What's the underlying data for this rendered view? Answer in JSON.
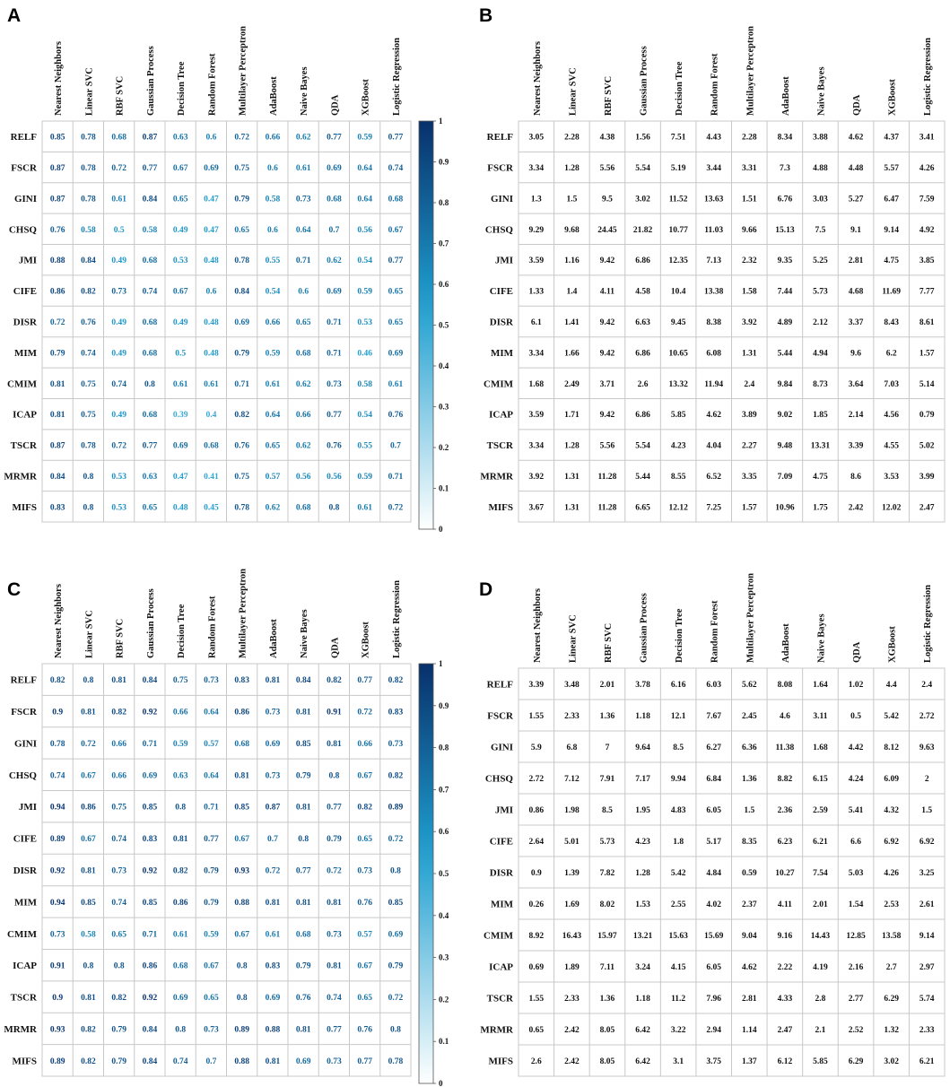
{
  "chart_data": [
    {
      "panel": "A",
      "type": "heatmap",
      "colored_values": true,
      "colorbar": {
        "min": 0,
        "max": 1,
        "ticks": [
          "0",
          "0.1",
          "0.2",
          "0.3",
          "0.4",
          "0.5",
          "0.6",
          "0.7",
          "0.8",
          "0.9",
          "1"
        ]
      },
      "columns": [
        "Nearest Neighbors",
        "Linear SVC",
        "RBF SVC",
        "Gaussian Process",
        "Decision Tree",
        "Random Forest",
        "Multilayer Perceptron",
        "AdaBoost",
        "Naive Bayes",
        "QDA",
        "XGBoost",
        "Logistic Regression"
      ],
      "rows": [
        "RELF",
        "FSCR",
        "GINI",
        "CHSQ",
        "JMI",
        "CIFE",
        "DISR",
        "MIM",
        "CMIM",
        "ICAP",
        "TSCR",
        "MRMR",
        "MIFS"
      ],
      "values": [
        [
          "0.85",
          "0.78",
          "0.68",
          "0.87",
          "0.63",
          "0.6",
          "0.72",
          "0.66",
          "0.62",
          "0.77",
          "0.59",
          "0.77"
        ],
        [
          "0.87",
          "0.78",
          "0.72",
          "0.77",
          "0.67",
          "0.69",
          "0.75",
          "0.6",
          "0.61",
          "0.69",
          "0.64",
          "0.74"
        ],
        [
          "0.87",
          "0.78",
          "0.61",
          "0.84",
          "0.65",
          "0.47",
          "0.79",
          "0.58",
          "0.73",
          "0.68",
          "0.64",
          "0.68"
        ],
        [
          "0.76",
          "0.58",
          "0.5",
          "0.58",
          "0.49",
          "0.47",
          "0.65",
          "0.6",
          "0.64",
          "0.7",
          "0.56",
          "0.67"
        ],
        [
          "0.88",
          "0.84",
          "0.49",
          "0.68",
          "0.53",
          "0.48",
          "0.78",
          "0.55",
          "0.71",
          "0.62",
          "0.54",
          "0.77"
        ],
        [
          "0.86",
          "0.82",
          "0.73",
          "0.74",
          "0.67",
          "0.6",
          "0.84",
          "0.54",
          "0.6",
          "0.69",
          "0.59",
          "0.65"
        ],
        [
          "0.72",
          "0.76",
          "0.49",
          "0.68",
          "0.49",
          "0.48",
          "0.69",
          "0.66",
          "0.65",
          "0.71",
          "0.53",
          "0.65"
        ],
        [
          "0.79",
          "0.74",
          "0.49",
          "0.68",
          "0.5",
          "0.48",
          "0.79",
          "0.59",
          "0.68",
          "0.71",
          "0.46",
          "0.69"
        ],
        [
          "0.81",
          "0.75",
          "0.74",
          "0.8",
          "0.61",
          "0.61",
          "0.71",
          "0.61",
          "0.62",
          "0.73",
          "0.58",
          "0.61"
        ],
        [
          "0.81",
          "0.75",
          "0.49",
          "0.68",
          "0.39",
          "0.4",
          "0.82",
          "0.64",
          "0.66",
          "0.77",
          "0.54",
          "0.76"
        ],
        [
          "0.87",
          "0.78",
          "0.72",
          "0.77",
          "0.69",
          "0.68",
          "0.76",
          "0.65",
          "0.62",
          "0.76",
          "0.55",
          "0.7"
        ],
        [
          "0.84",
          "0.8",
          "0.53",
          "0.63",
          "0.47",
          "0.41",
          "0.75",
          "0.57",
          "0.56",
          "0.56",
          "0.59",
          "0.71"
        ],
        [
          "0.83",
          "0.8",
          "0.53",
          "0.65",
          "0.48",
          "0.45",
          "0.78",
          "0.62",
          "0.68",
          "0.8",
          "0.61",
          "0.72"
        ]
      ]
    },
    {
      "panel": "B",
      "type": "table",
      "colored_values": false,
      "columns": [
        "Nearest Neighbors",
        "Linear SVC",
        "RBF SVC",
        "Gaussian Process",
        "Decision Tree",
        "Random Forest",
        "Multilayer Perceptron",
        "AdaBoost",
        "Naive Bayes",
        "QDA",
        "XGBoost",
        "Logistic Regression"
      ],
      "rows": [
        "RELF",
        "FSCR",
        "GINI",
        "CHSQ",
        "JMI",
        "CIFE",
        "DISR",
        "MIM",
        "CMIM",
        "ICAP",
        "TSCR",
        "MRMR",
        "MIFS"
      ],
      "values": [
        [
          "3.05",
          "2.28",
          "4.38",
          "1.56",
          "7.51",
          "4.43",
          "2.28",
          "8.34",
          "3.88",
          "4.62",
          "4.37",
          "3.41"
        ],
        [
          "3.34",
          "1.28",
          "5.56",
          "5.54",
          "5.19",
          "3.44",
          "3.31",
          "7.3",
          "4.88",
          "4.48",
          "5.57",
          "4.26"
        ],
        [
          "1.3",
          "1.5",
          "9.5",
          "3.02",
          "11.52",
          "13.63",
          "1.51",
          "6.76",
          "3.03",
          "5.27",
          "6.47",
          "7.59"
        ],
        [
          "9.29",
          "9.68",
          "24.45",
          "21.82",
          "10.77",
          "11.03",
          "9.66",
          "15.13",
          "7.5",
          "9.1",
          "9.14",
          "4.92"
        ],
        [
          "3.59",
          "1.16",
          "9.42",
          "6.86",
          "12.35",
          "7.13",
          "2.32",
          "9.35",
          "5.25",
          "2.81",
          "4.75",
          "3.85"
        ],
        [
          "1.33",
          "1.4",
          "4.11",
          "4.58",
          "10.4",
          "13.38",
          "1.58",
          "7.44",
          "5.73",
          "4.68",
          "11.69",
          "7.77"
        ],
        [
          "6.1",
          "1.41",
          "9.42",
          "6.63",
          "9.45",
          "8.38",
          "3.92",
          "4.89",
          "2.12",
          "3.37",
          "8.43",
          "8.61"
        ],
        [
          "3.34",
          "1.66",
          "9.42",
          "6.86",
          "10.65",
          "6.08",
          "1.31",
          "5.44",
          "4.94",
          "9.6",
          "6.2",
          "1.57"
        ],
        [
          "1.68",
          "2.49",
          "3.71",
          "2.6",
          "13.32",
          "11.94",
          "2.4",
          "9.84",
          "8.73",
          "3.64",
          "7.03",
          "5.14"
        ],
        [
          "3.59",
          "1.71",
          "9.42",
          "6.86",
          "5.85",
          "4.62",
          "3.89",
          "9.02",
          "1.85",
          "2.14",
          "4.56",
          "0.79"
        ],
        [
          "3.34",
          "1.28",
          "5.56",
          "5.54",
          "4.23",
          "4.04",
          "2.27",
          "9.48",
          "13.31",
          "3.39",
          "4.55",
          "5.02"
        ],
        [
          "3.92",
          "1.31",
          "11.28",
          "5.44",
          "8.55",
          "6.52",
          "3.35",
          "7.09",
          "4.75",
          "8.6",
          "3.53",
          "3.99"
        ],
        [
          "3.67",
          "1.31",
          "11.28",
          "6.65",
          "12.12",
          "7.25",
          "1.57",
          "10.96",
          "1.75",
          "2.42",
          "12.02",
          "2.47"
        ]
      ]
    },
    {
      "panel": "C",
      "type": "heatmap",
      "colored_values": true,
      "colorbar": {
        "min": 0,
        "max": 1,
        "ticks": [
          "0",
          "0.1",
          "0.2",
          "0.3",
          "0.4",
          "0.5",
          "0.6",
          "0.7",
          "0.8",
          "0.9",
          "1"
        ]
      },
      "columns": [
        "Nearest Neighbors",
        "Linear SVC",
        "RBF SVC",
        "Gaussian Process",
        "Decision Tree",
        "Random Forest",
        "Multilayer Perceptron",
        "AdaBoost",
        "Naive Bayes",
        "QDA",
        "XGBoost",
        "Logistic Regression"
      ],
      "rows": [
        "RELF",
        "FSCR",
        "GINI",
        "CHSQ",
        "JMI",
        "CIFE",
        "DISR",
        "MIM",
        "CMIM",
        "ICAP",
        "TSCR",
        "MRMR",
        "MIFS"
      ],
      "values": [
        [
          "0.82",
          "0.8",
          "0.81",
          "0.84",
          "0.75",
          "0.73",
          "0.83",
          "0.81",
          "0.84",
          "0.82",
          "0.77",
          "0.82"
        ],
        [
          "0.9",
          "0.81",
          "0.82",
          "0.92",
          "0.66",
          "0.64",
          "0.86",
          "0.73",
          "0.81",
          "0.91",
          "0.72",
          "0.83"
        ],
        [
          "0.78",
          "0.72",
          "0.66",
          "0.71",
          "0.59",
          "0.57",
          "0.68",
          "0.69",
          "0.85",
          "0.81",
          "0.66",
          "0.73"
        ],
        [
          "0.74",
          "0.67",
          "0.66",
          "0.69",
          "0.63",
          "0.64",
          "0.81",
          "0.73",
          "0.79",
          "0.8",
          "0.67",
          "0.82"
        ],
        [
          "0.94",
          "0.86",
          "0.75",
          "0.85",
          "0.8",
          "0.71",
          "0.85",
          "0.87",
          "0.81",
          "0.77",
          "0.82",
          "0.89"
        ],
        [
          "0.89",
          "0.67",
          "0.74",
          "0.83",
          "0.81",
          "0.77",
          "0.67",
          "0.7",
          "0.8",
          "0.79",
          "0.65",
          "0.72"
        ],
        [
          "0.92",
          "0.81",
          "0.73",
          "0.92",
          "0.82",
          "0.79",
          "0.93",
          "0.72",
          "0.77",
          "0.72",
          "0.73",
          "0.8"
        ],
        [
          "0.94",
          "0.85",
          "0.74",
          "0.85",
          "0.86",
          "0.79",
          "0.88",
          "0.81",
          "0.81",
          "0.81",
          "0.76",
          "0.85"
        ],
        [
          "0.73",
          "0.58",
          "0.65",
          "0.71",
          "0.61",
          "0.59",
          "0.67",
          "0.61",
          "0.68",
          "0.73",
          "0.57",
          "0.69"
        ],
        [
          "0.91",
          "0.8",
          "0.8",
          "0.86",
          "0.68",
          "0.67",
          "0.8",
          "0.83",
          "0.79",
          "0.81",
          "0.67",
          "0.79"
        ],
        [
          "0.9",
          "0.81",
          "0.82",
          "0.92",
          "0.69",
          "0.65",
          "0.8",
          "0.69",
          "0.76",
          "0.74",
          "0.65",
          "0.72"
        ],
        [
          "0.93",
          "0.82",
          "0.79",
          "0.84",
          "0.8",
          "0.73",
          "0.89",
          "0.88",
          "0.81",
          "0.77",
          "0.76",
          "0.8"
        ],
        [
          "0.89",
          "0.82",
          "0.79",
          "0.84",
          "0.74",
          "0.7",
          "0.88",
          "0.81",
          "0.69",
          "0.73",
          "0.77",
          "0.78"
        ]
      ]
    },
    {
      "panel": "D",
      "type": "table",
      "colored_values": false,
      "columns": [
        "Nearest Neighbors",
        "Linear SVC",
        "RBF SVC",
        "Gaussian Process",
        "Decision Tree",
        "Random Forest",
        "Multilayer Perceptron",
        "AdaBoost",
        "Naive Bayes",
        "QDA",
        "XGBoost",
        "Logistic Regression"
      ],
      "rows": [
        "RELF",
        "FSCR",
        "GINI",
        "CHSQ",
        "JMI",
        "CIFE",
        "DISR",
        "MIM",
        "CMIM",
        "ICAP",
        "TSCR",
        "MRMR",
        "MIFS"
      ],
      "values": [
        [
          "3.39",
          "3.48",
          "2.01",
          "3.78",
          "6.16",
          "6.03",
          "5.62",
          "8.08",
          "1.64",
          "1.02",
          "4.4",
          "2.4"
        ],
        [
          "1.55",
          "2.33",
          "1.36",
          "1.18",
          "12.1",
          "7.67",
          "2.45",
          "4.6",
          "3.11",
          "0.5",
          "5.42",
          "2.72"
        ],
        [
          "5.9",
          "6.8",
          "7",
          "9.64",
          "8.5",
          "6.27",
          "6.36",
          "11.38",
          "1.68",
          "4.42",
          "8.12",
          "9.63"
        ],
        [
          "2.72",
          "7.12",
          "7.91",
          "7.17",
          "9.94",
          "6.84",
          "1.36",
          "8.82",
          "6.15",
          "4.24",
          "6.09",
          "2"
        ],
        [
          "0.86",
          "1.98",
          "8.5",
          "1.95",
          "4.83",
          "6.05",
          "1.5",
          "2.36",
          "2.59",
          "5.41",
          "4.32",
          "1.5"
        ],
        [
          "2.64",
          "5.01",
          "5.73",
          "4.23",
          "1.8",
          "5.17",
          "8.35",
          "6.23",
          "6.21",
          "6.6",
          "6.92",
          "6.92"
        ],
        [
          "0.9",
          "1.39",
          "7.82",
          "1.28",
          "5.42",
          "4.84",
          "0.59",
          "10.27",
          "7.54",
          "5.03",
          "4.26",
          "3.25"
        ],
        [
          "0.26",
          "1.69",
          "8.02",
          "1.53",
          "2.55",
          "4.02",
          "2.37",
          "4.11",
          "2.01",
          "1.54",
          "2.53",
          "2.61"
        ],
        [
          "8.92",
          "16.43",
          "15.97",
          "13.21",
          "15.63",
          "15.69",
          "9.04",
          "9.16",
          "14.43",
          "12.85",
          "13.58",
          "9.14"
        ],
        [
          "0.69",
          "1.89",
          "7.11",
          "3.24",
          "4.15",
          "6.05",
          "4.62",
          "2.22",
          "4.19",
          "2.16",
          "2.7",
          "2.97"
        ],
        [
          "1.55",
          "2.33",
          "1.36",
          "1.18",
          "11.2",
          "7.96",
          "2.81",
          "4.33",
          "2.8",
          "2.77",
          "6.29",
          "5.74"
        ],
        [
          "0.65",
          "2.42",
          "8.05",
          "6.42",
          "3.22",
          "2.94",
          "1.14",
          "2.47",
          "2.1",
          "2.52",
          "1.32",
          "2.33"
        ],
        [
          "2.6",
          "2.42",
          "8.05",
          "6.42",
          "3.1",
          "3.75",
          "1.37",
          "6.12",
          "5.85",
          "6.29",
          "3.02",
          "6.21"
        ]
      ]
    }
  ],
  "colors": {
    "grid": "#c8c8c8",
    "text": "#111111",
    "scale_low": "#ffffff",
    "scale_mid": "#1f9fd0",
    "scale_high": "#08306b"
  }
}
